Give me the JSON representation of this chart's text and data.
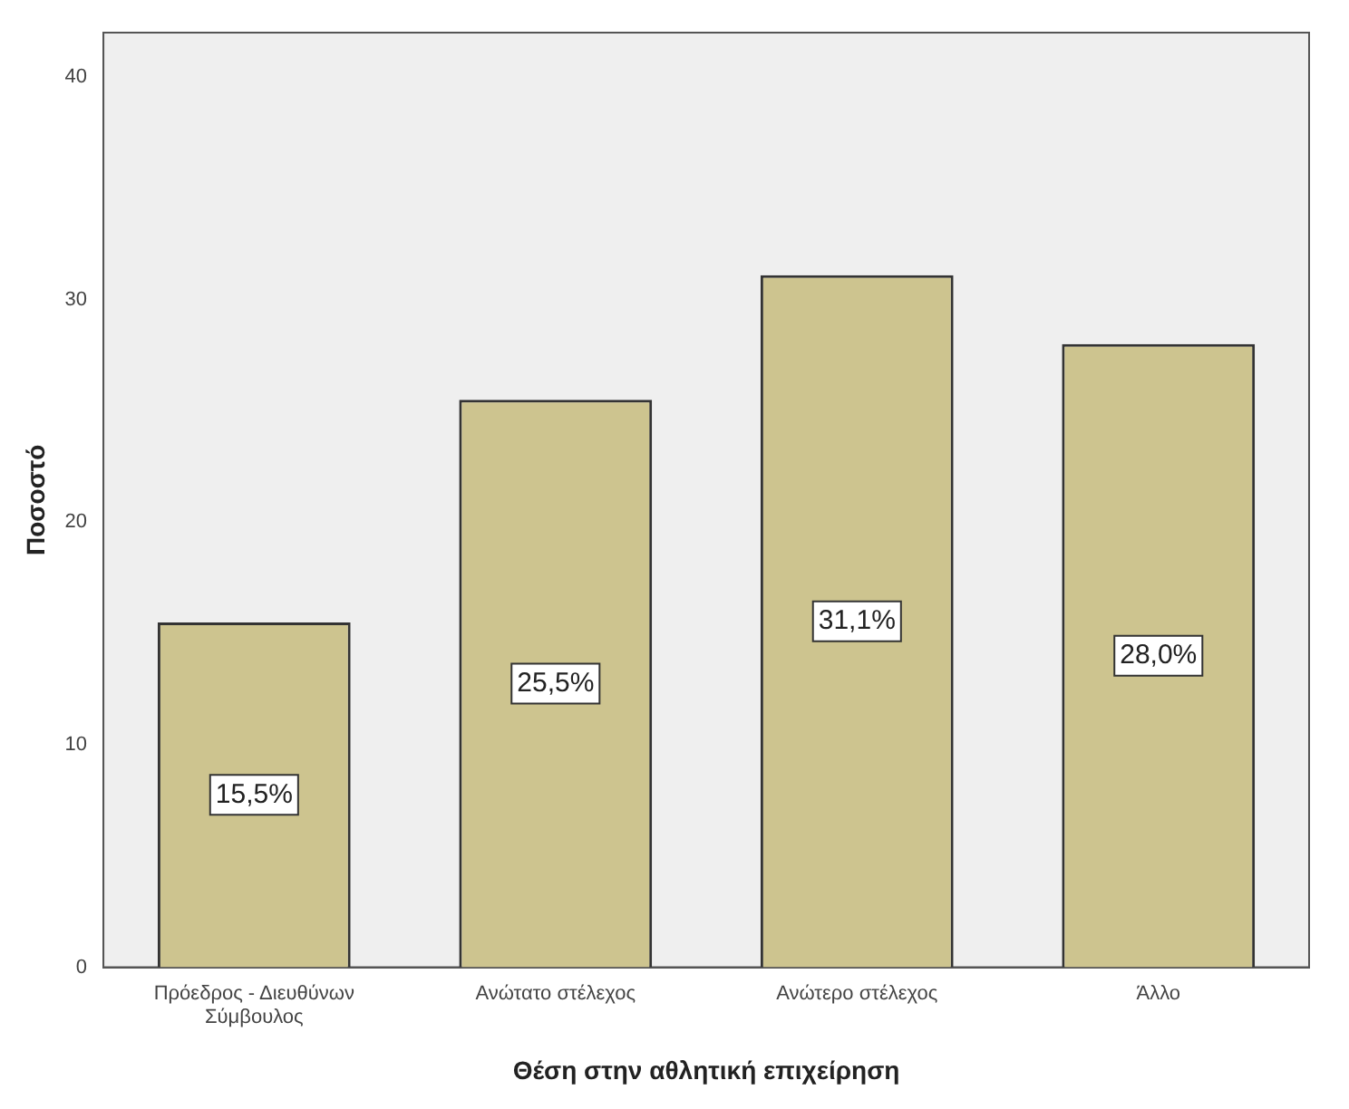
{
  "chart_data": {
    "type": "bar",
    "xlabel": "Θέση στην αθλητική επιχείρηση",
    "ylabel": "Ποσοστό",
    "categories": [
      "Πρόεδρος - Διευθύνων Σύμβουλος",
      "Ανώτατο στέλεχος",
      "Ανώτερο στέλεχος",
      "Άλλο"
    ],
    "values": [
      15.5,
      25.5,
      31.1,
      28.0
    ],
    "value_labels": [
      "15,5%",
      "25,5%",
      "31,1%",
      "28,0%"
    ],
    "color": "#cdc48f",
    "ylim": [
      0,
      42
    ],
    "yticks": [
      0,
      10,
      20,
      30,
      40
    ],
    "grid": false
  }
}
